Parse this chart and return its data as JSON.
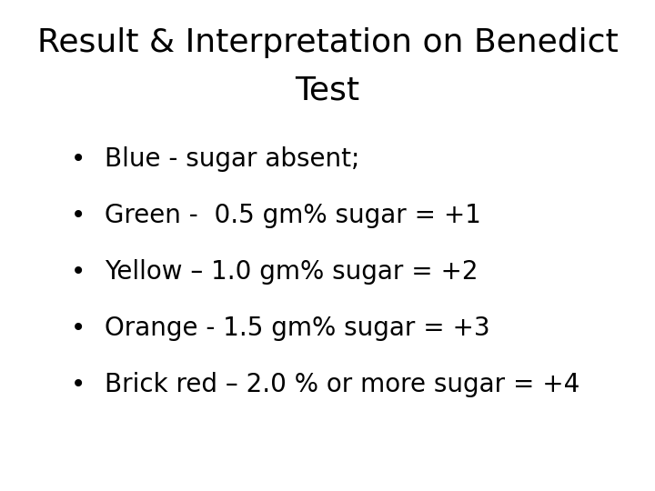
{
  "title_line1": "Result & Interpretation on Benedict",
  "title_line2": "Test",
  "bullet_items": [
    "Blue - sugar absent;",
    "Green -  0.5 gm% sugar = +1",
    "Yellow – 1.0 gm% sugar = +2",
    "Orange - 1.5 gm% sugar = +3",
    "Brick red – 2.0 % or more sugar = +4"
  ],
  "background_color": "#ffffff",
  "text_color": "#000000",
  "title_fontsize": 26,
  "bullet_fontsize": 20,
  "bullet_symbol": "•",
  "font_family": "DejaVu Sans"
}
